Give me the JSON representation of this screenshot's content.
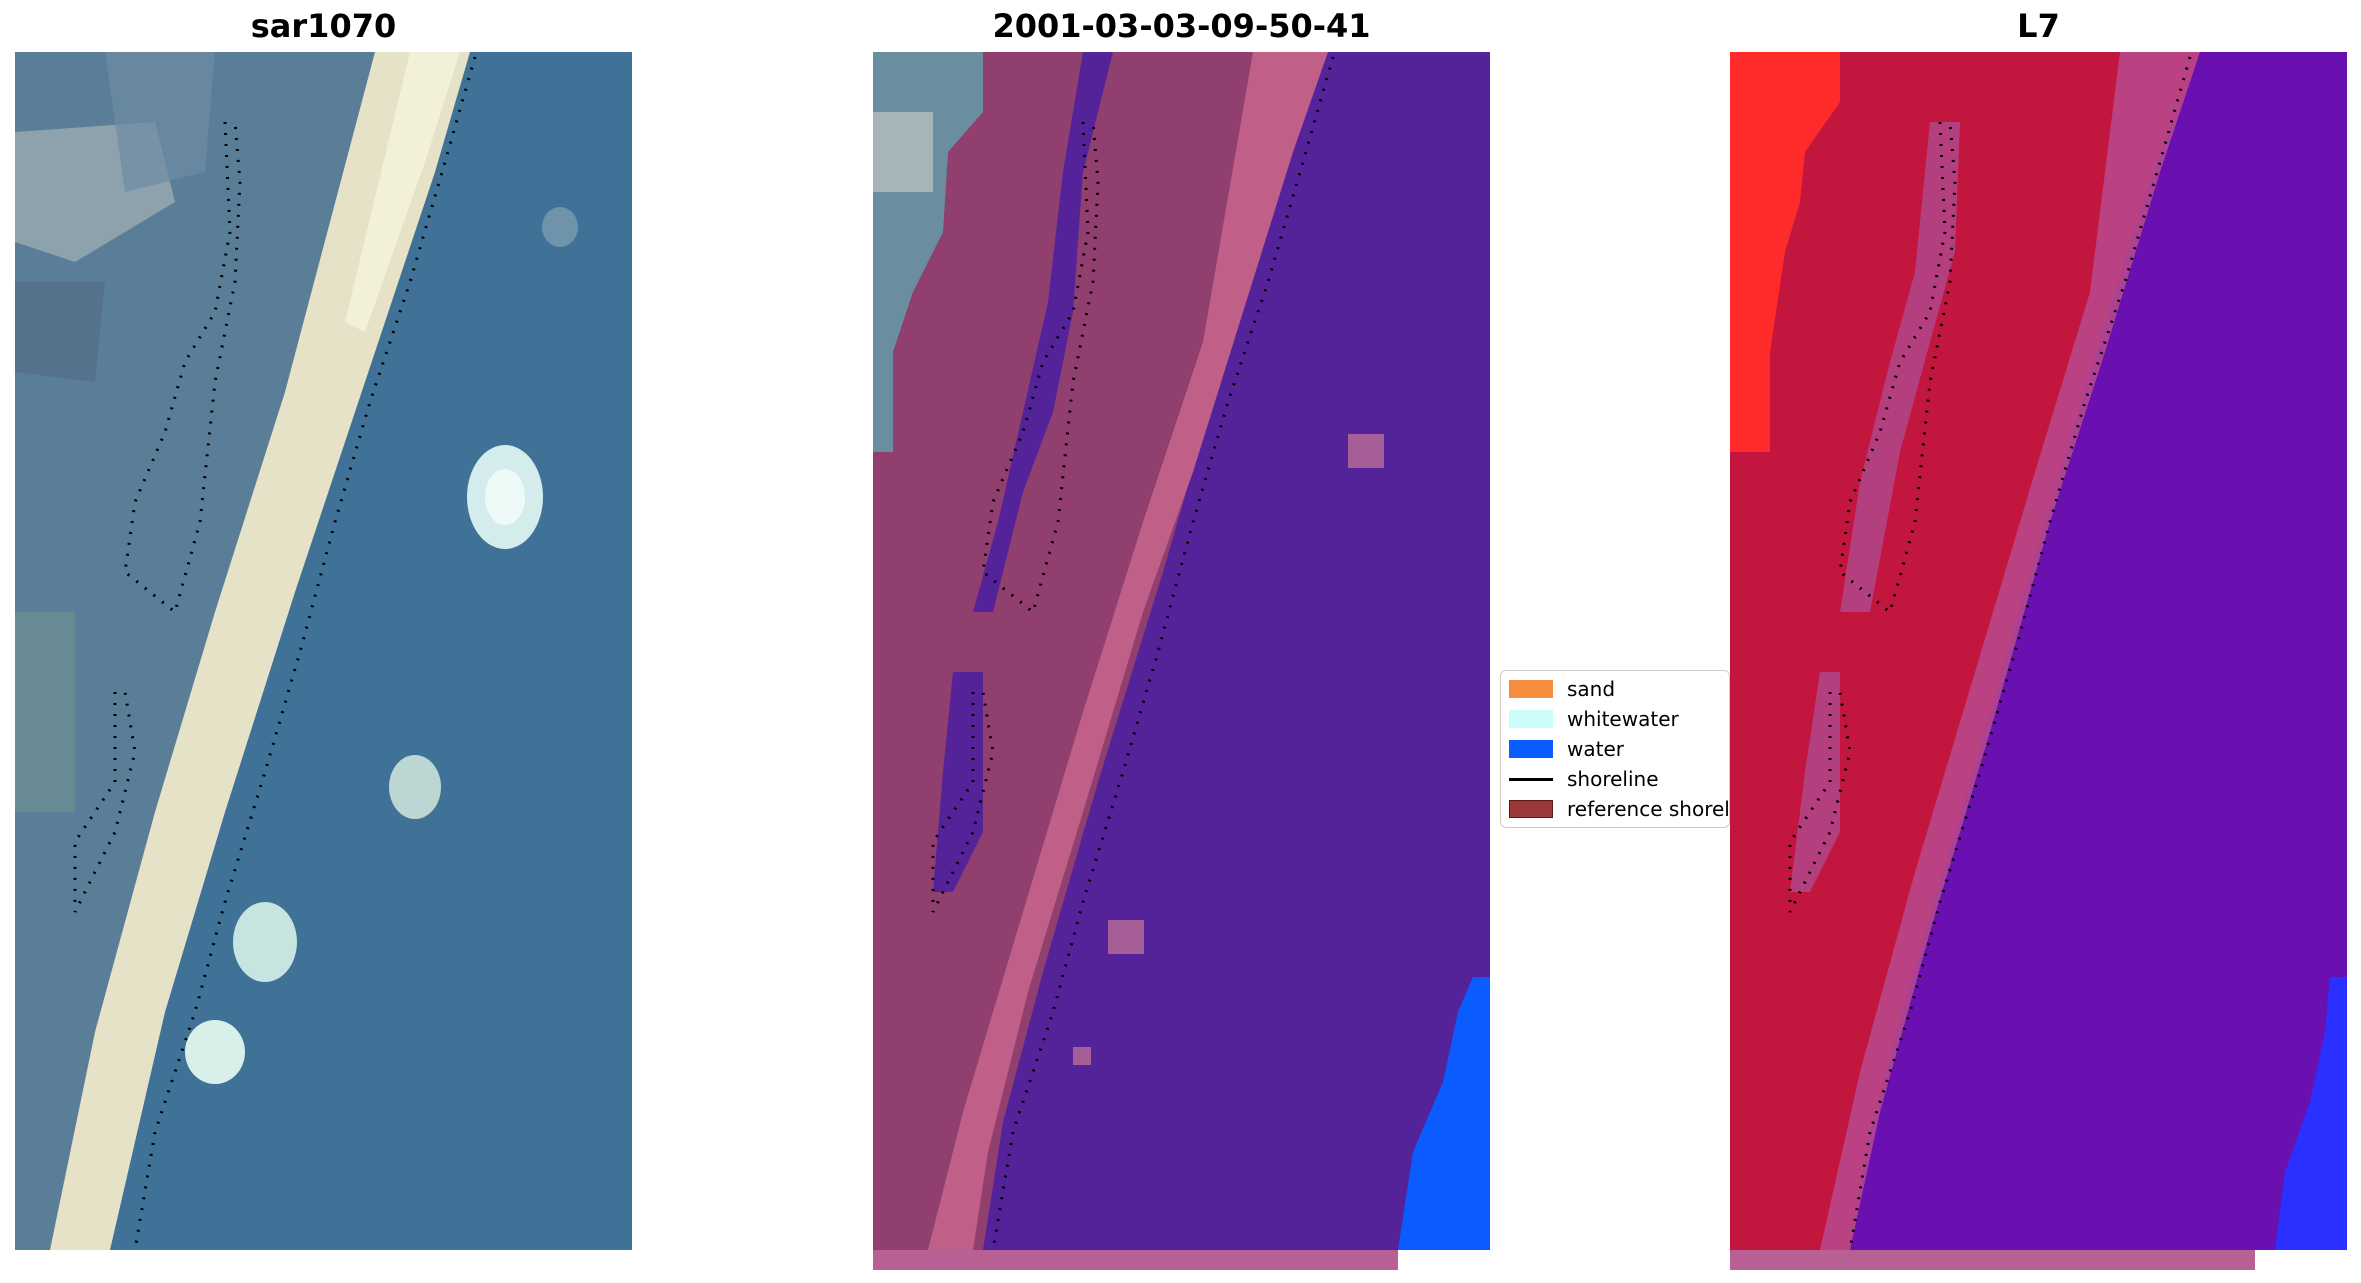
{
  "panels": [
    {
      "title": "sar1070",
      "kind": "rgb"
    },
    {
      "title": "2001-03-03-09-50-41",
      "kind": "classified"
    },
    {
      "title": "L7",
      "kind": "false-color"
    }
  ],
  "legend": {
    "items": [
      {
        "label": "sand",
        "type": "patch",
        "color": "#f78d3f",
        "edge": "#f78d3f"
      },
      {
        "label": "whitewater",
        "type": "patch",
        "color": "#ccfdfa",
        "edge": "#ccfdfa"
      },
      {
        "label": "water",
        "type": "patch",
        "color": "#0a5cff",
        "edge": "#0a5cff"
      },
      {
        "label": "shoreline",
        "type": "line",
        "color": "#000000"
      },
      {
        "label": "reference shoreline",
        "type": "patch",
        "color": "#9a3939",
        "edge": "#5a1a1a"
      }
    ]
  },
  "colors": {
    "sea_rgb": "#3f7296",
    "beach_rgb": "#e8e4cc",
    "class_water_overlay": "#54239a",
    "class_land": "#903f6e",
    "class_pink_band": "#c06088",
    "class_water_blue": "#0a5cff",
    "fc_red": "#c2163f",
    "fc_purple": "#6a10b0",
    "fc_bright_red": "#ff2a2a"
  }
}
